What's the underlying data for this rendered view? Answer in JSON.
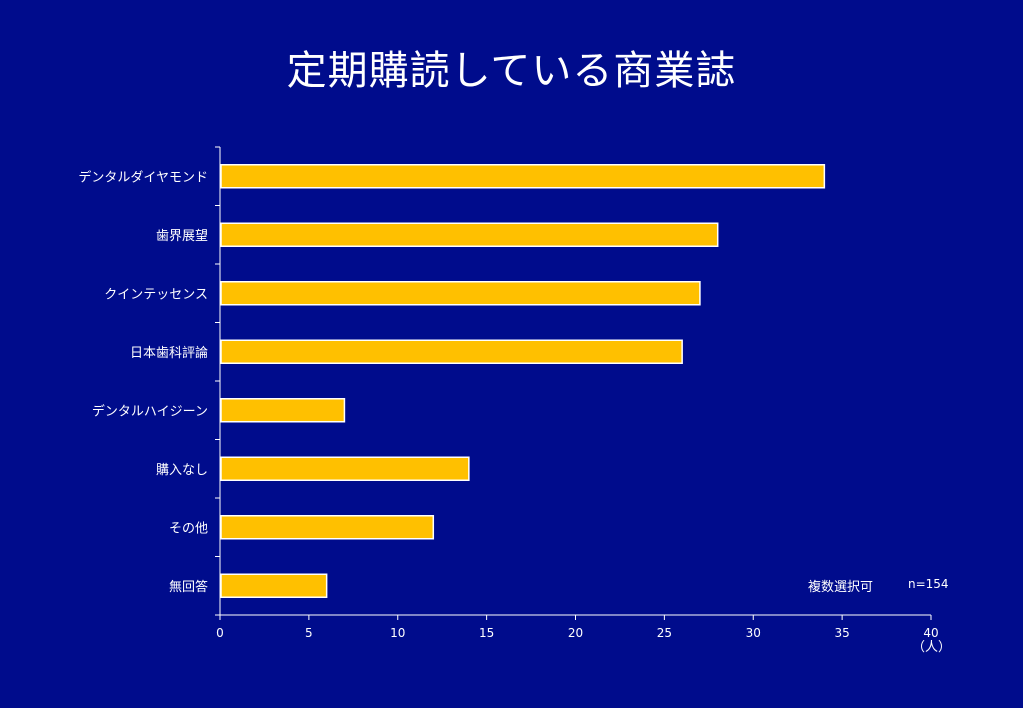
{
  "title": "定期購読している商業誌",
  "notes": {
    "multiple_choice": "複数選択可",
    "n": "n=154"
  },
  "x_unit": "（人）",
  "chart_data": {
    "type": "bar",
    "orientation": "horizontal",
    "title": "定期購読している商業誌",
    "categories": [
      "デンタルダイヤモンド",
      "歯界展望",
      "クインテッセンス",
      "日本歯科評論",
      "デンタルハイジーン",
      "購入なし",
      "その他",
      "無回答"
    ],
    "values": [
      34,
      28,
      27,
      26,
      7,
      14,
      12,
      6
    ],
    "xlabel": "（人）",
    "ylabel": "",
    "xlim": [
      0,
      40
    ],
    "xticks": [
      "0",
      "5",
      "10",
      "15",
      "20",
      "25",
      "30",
      "35",
      "40"
    ],
    "grid": false,
    "bar_color": "#ffc000",
    "bar_edge_color": "#ffffff",
    "background_color": "#000c8c"
  }
}
